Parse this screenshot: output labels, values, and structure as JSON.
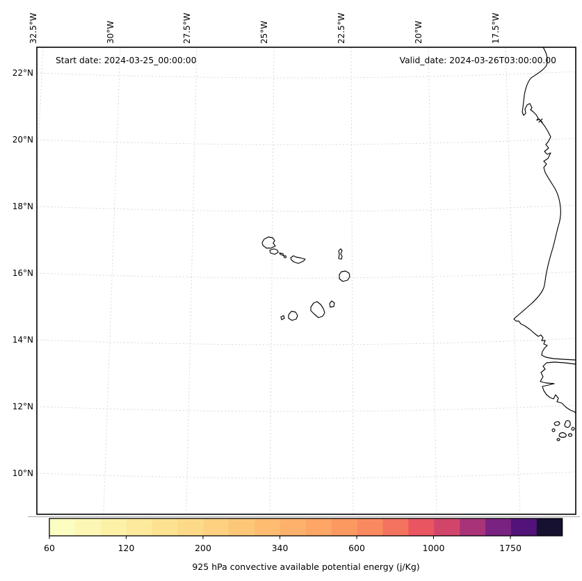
{
  "annotations": {
    "start_date": "Start date: 2024-03-25_00:00:00",
    "valid_date": "Valid_date: 2024-03-26T03:00:00.00"
  },
  "axes": {
    "top_lon_labels": [
      "32.5°W",
      "30°W",
      "27.5°W",
      "25°W",
      "22.5°W",
      "20°W",
      "17.5°W"
    ],
    "left_lat_labels": [
      "22°N",
      "20°N",
      "18°N",
      "16°N",
      "14°N",
      "12°N",
      "10°N"
    ]
  },
  "colorbar": {
    "label": "925 hPa convective available potential energy (j/Kg)",
    "tick_labels": [
      "60",
      "120",
      "200",
      "340",
      "600",
      "1000",
      "1750"
    ],
    "segment_colors": [
      "#fcfdc1",
      "#fcf7b4",
      "#fdf1a8",
      "#fdea9d",
      "#fde292",
      "#fdda88",
      "#fdd17f",
      "#fcc777",
      "#fdbc70",
      "#feb16a",
      "#fea665",
      "#fc9961",
      "#f98a5f",
      "#f4735f",
      "#e95560",
      "#d2456b",
      "#a93379",
      "#792282",
      "#521379",
      "#161031"
    ]
  },
  "chart_data": {
    "type": "heatmap",
    "title": "",
    "annotations": [
      "Start date: 2024-03-25_00:00:00",
      "Valid_date: 2024-03-26T03:00:00.00"
    ],
    "x_axis": {
      "label": "longitude",
      "ticks": [
        "32.5°W",
        "30°W",
        "27.5°W",
        "25°W",
        "22.5°W",
        "20°W",
        "17.5°W"
      ],
      "range_deg_west": [
        32.7,
        15.2
      ]
    },
    "y_axis": {
      "label": "latitude",
      "ticks": [
        "22°N",
        "20°N",
        "18°N",
        "16°N",
        "14°N",
        "12°N",
        "10°N"
      ],
      "range_deg_north": [
        8.8,
        22.8
      ]
    },
    "colorbar": {
      "label": "925 hPa convective available potential energy (j/Kg)",
      "tick_values": [
        60,
        120,
        200,
        340,
        600,
        1000,
        1750
      ],
      "n_segments": 20,
      "colors": [
        "#fcfdc1",
        "#fcf7b4",
        "#fdf1a8",
        "#fdea9d",
        "#fde292",
        "#fdda88",
        "#fdd17f",
        "#fcc777",
        "#fdbc70",
        "#feb16a",
        "#fea665",
        "#fc9961",
        "#f98a5f",
        "#f4735f",
        "#e95560",
        "#d2456b",
        "#a93379",
        "#792282",
        "#521379",
        "#161031"
      ],
      "orientation": "horizontal"
    },
    "field": "no shaded CAPE values visible in domain (map area white, coastlines only)",
    "map_features": [
      "Cape Verde islands",
      "West African coastline from Western Sahara to Guinea-Bissau",
      "Bijagos islands"
    ],
    "grid": "dashed light-gray graticule, 2.5 deg lon / 2 deg lat"
  }
}
